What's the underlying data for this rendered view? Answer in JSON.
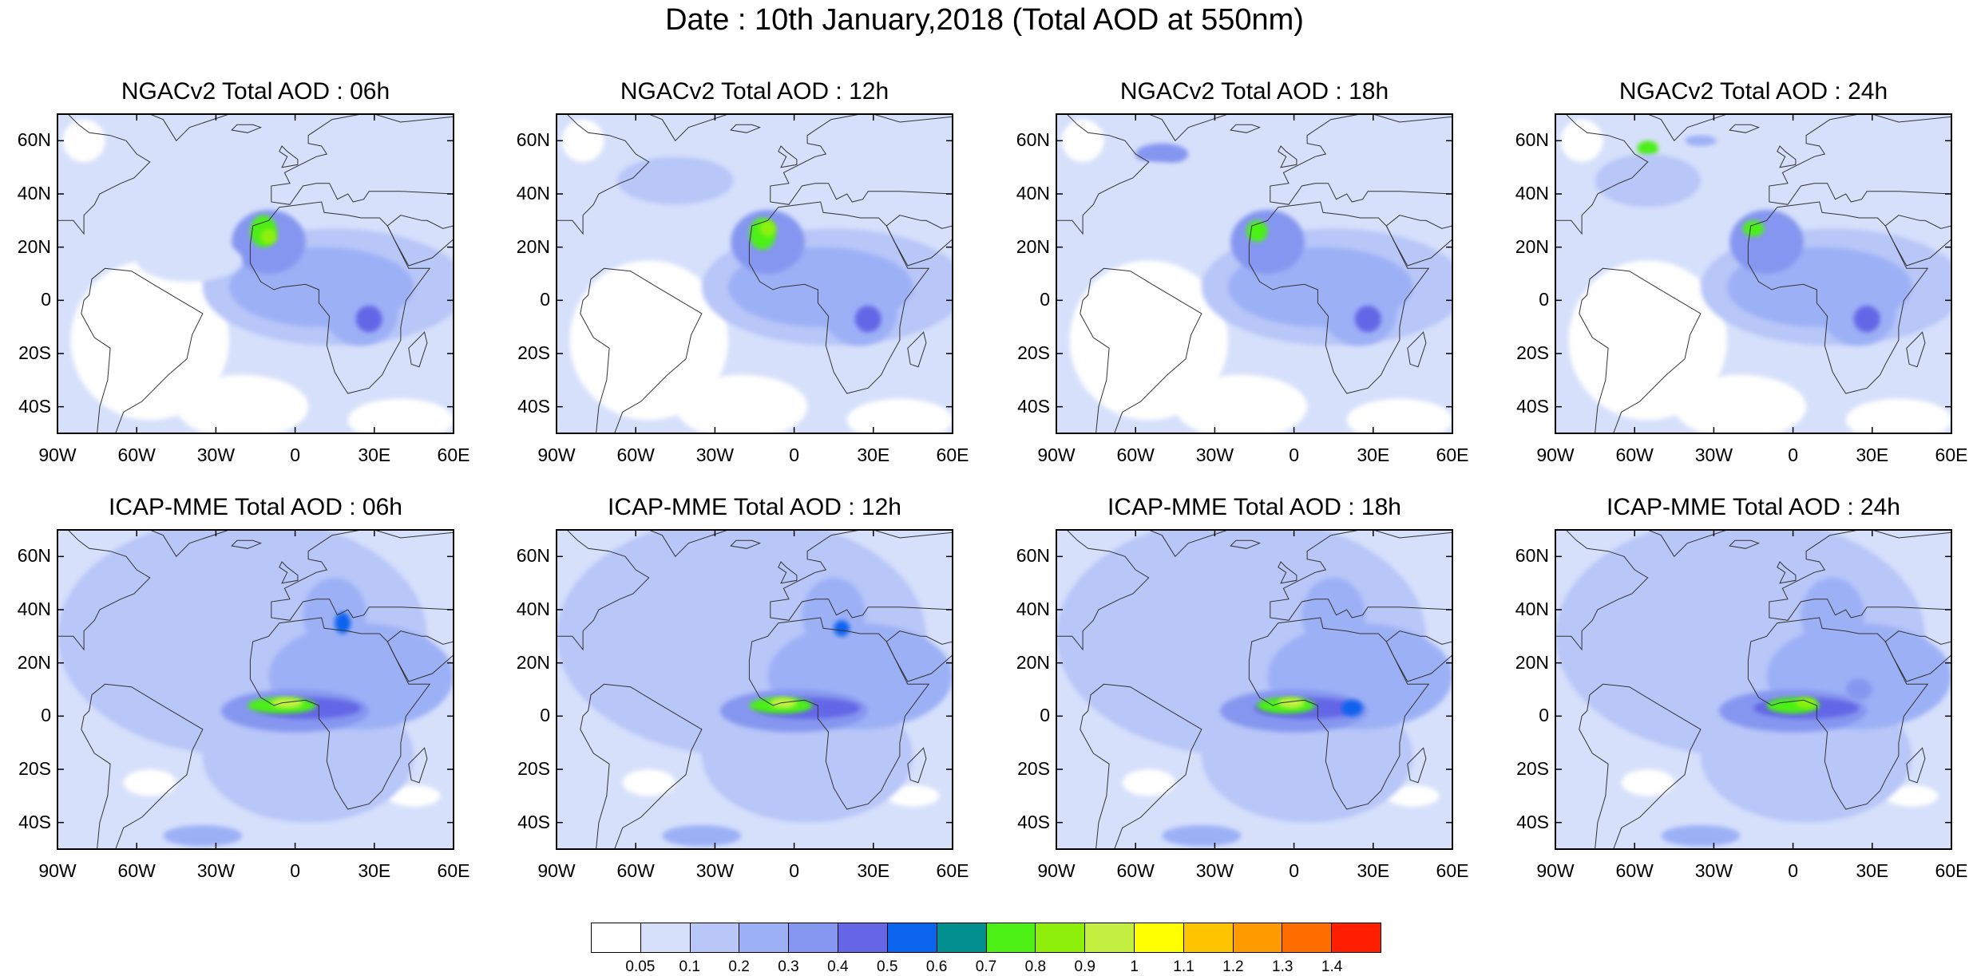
{
  "title": "Date : 10th January,2018 (Total AOD at 550nm)",
  "lat_labels": [
    "60N",
    "40N",
    "20N",
    "0",
    "20S",
    "40S"
  ],
  "lon_labels": [
    "90W",
    "60W",
    "30W",
    "0",
    "30E",
    "60E"
  ],
  "panels": [
    {
      "title": "NGACv2 Total AOD : 06h",
      "model": "NGACv2",
      "hour": "06h"
    },
    {
      "title": "NGACv2 Total AOD : 12h",
      "model": "NGACv2",
      "hour": "12h"
    },
    {
      "title": "NGACv2 Total AOD : 18h",
      "model": "NGACv2",
      "hour": "18h"
    },
    {
      "title": "NGACv2 Total AOD : 24h",
      "model": "NGACv2",
      "hour": "24h"
    },
    {
      "title": "ICAP-MME Total AOD : 06h",
      "model": "ICAP-MME",
      "hour": "06h"
    },
    {
      "title": "ICAP-MME Total AOD : 12h",
      "model": "ICAP-MME",
      "hour": "12h"
    },
    {
      "title": "ICAP-MME Total AOD : 18h",
      "model": "ICAP-MME",
      "hour": "18h"
    },
    {
      "title": "ICAP-MME Total AOD : 24h",
      "model": "ICAP-MME",
      "hour": "24h"
    }
  ],
  "colorbar": {
    "labels": [
      "0.05",
      "0.1",
      "0.2",
      "0.3",
      "0.4",
      "0.5",
      "0.6",
      "0.7",
      "0.8",
      "0.9",
      "1",
      "1.1",
      "1.2",
      "1.3",
      "1.4"
    ],
    "colors": [
      "#ffffff",
      "#d6e0fb",
      "#b8c6f8",
      "#9cb0f6",
      "#8596f0",
      "#6466e6",
      "#0a64ee",
      "#008e8e",
      "#4cf014",
      "#8ef00a",
      "#c3f040",
      "#ffff00",
      "#ffc400",
      "#ff9a00",
      "#ff6c00",
      "#ff1e00"
    ]
  }
}
